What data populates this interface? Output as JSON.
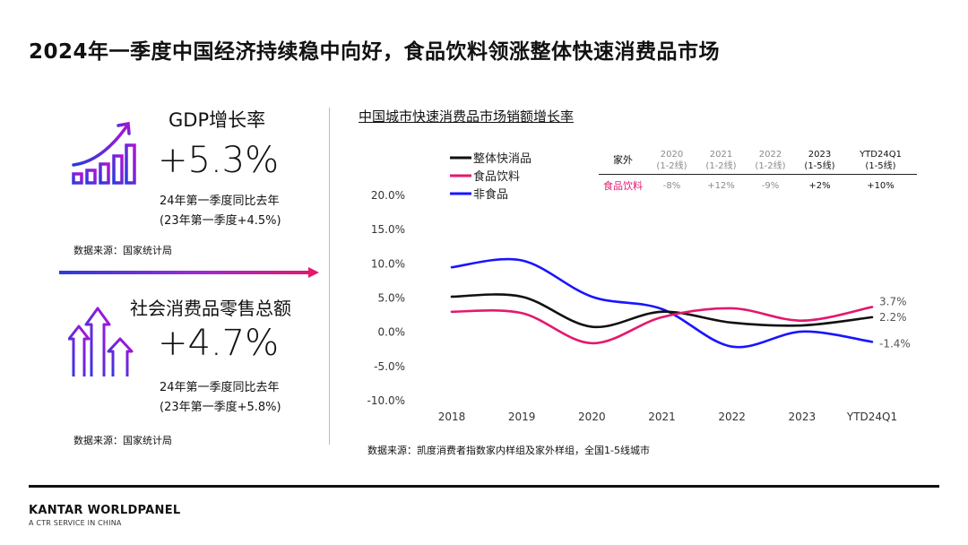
{
  "title": "2024年一季度中国经济持续稳中向好，食品饮料领涨整体快速消费品市场",
  "gdp": {
    "label": "GDP增长率",
    "value": "+5.3%",
    "note_line1": "24年第一季度同比去年",
    "note_line2": "(23年第一季度+4.5%)",
    "source": "数据来源：国家统计局"
  },
  "retail": {
    "label": "社会消费品零售总额",
    "value": "+4.7%",
    "note_line1": "24年第一季度同比去年",
    "note_line2": "(23年第一季度+5.8%)",
    "source": "数据来源：国家统计局"
  },
  "chart_title": "中国城市快速消费品市场销额增长率",
  "chart_source": "数据来源：凯度消费者指数家内样组及家外样组，全国1-5线城市",
  "colors": {
    "black": "#111111",
    "pink": "#e3186f",
    "blue": "#1a14ff",
    "purple": "#7a3be8"
  },
  "out_of_home_table": {
    "corner": "家外",
    "headers": [
      {
        "year": "2020",
        "tier": "(1-2线)"
      },
      {
        "year": "2021",
        "tier": "(1-2线)"
      },
      {
        "year": "2022",
        "tier": "(1-2线)"
      },
      {
        "year": "2023",
        "tier": "(1-5线)"
      },
      {
        "year": "YTD24Q1",
        "tier": "(1-5线)"
      }
    ],
    "row_label": "食品饮料",
    "values": [
      "-8%",
      "+12%",
      "-9%",
      "+2%",
      "+10%"
    ]
  },
  "chart_data": {
    "type": "line",
    "x": [
      "2018",
      "2019",
      "2020",
      "2021",
      "2022",
      "2023",
      "YTD24Q1"
    ],
    "ylim": [
      -10,
      20
    ],
    "yticks": [
      "20.0%",
      "15.0%",
      "10.0%",
      "5.0%",
      "0.0%",
      "-5.0%",
      "-10.0%"
    ],
    "yticks_values": [
      20,
      15,
      10,
      5,
      0,
      -5,
      -10
    ],
    "legend_position": "top-left",
    "series": [
      {
        "name": "整体快消品",
        "color": "#111111",
        "values": [
          5.2,
          5.2,
          0.8,
          3.0,
          1.4,
          1.0,
          2.2
        ],
        "end_label": "2.2%"
      },
      {
        "name": "食品饮料",
        "color": "#e3186f",
        "values": [
          3.0,
          2.8,
          -1.6,
          2.2,
          3.5,
          1.7,
          3.7
        ],
        "end_label": "3.7%"
      },
      {
        "name": "非食品",
        "color": "#1a14ff",
        "values": [
          9.5,
          10.5,
          5.2,
          3.4,
          -2.1,
          0.1,
          -1.4
        ],
        "end_label": "-1.4%"
      }
    ]
  },
  "brand": "KANTAR WORLDPANEL",
  "brand_sub": "A CTR SERVICE IN CHINA"
}
